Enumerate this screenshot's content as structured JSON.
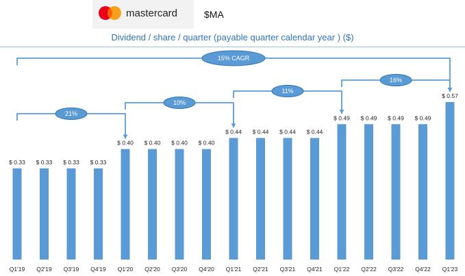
{
  "header": {
    "logo_text": "mastercard",
    "ticker": "$MA",
    "title": "Dividend / share / quarter (payable quarter calendar year ) ($)"
  },
  "colors": {
    "bar": "#5b9bd5",
    "bracket": "#5b9bd5",
    "bubble_fill": "#5b9bd5",
    "bubble_stroke": "#2e75b6",
    "title": "#2e75b6",
    "mc_red": "#eb001b",
    "mc_orange": "#f79e1b",
    "mc_overlap": "#ff5f00"
  },
  "chart_data": {
    "type": "bar",
    "title": "Dividend / share / quarter (payable quarter calendar year ) ($)",
    "xlabel": "",
    "ylabel": "",
    "ylim": [
      0,
      0.6
    ],
    "grid": false,
    "categories": [
      "Q1'19",
      "Q2'19",
      "Q3'19",
      "Q4'19",
      "Q1'20",
      "Q2'20",
      "Q3'20",
      "Q4'20",
      "Q1'21",
      "Q2'21",
      "Q3'21",
      "Q4'21",
      "Q1'22",
      "Q2'22",
      "Q3'22",
      "Q4'22",
      "Q1'23"
    ],
    "values": [
      0.33,
      0.33,
      0.33,
      0.33,
      0.4,
      0.4,
      0.4,
      0.4,
      0.44,
      0.44,
      0.44,
      0.44,
      0.49,
      0.49,
      0.49,
      0.49,
      0.57
    ],
    "data_labels": [
      "$ 0.33",
      "$ 0.33",
      "$ 0.33",
      "$ 0.33",
      "$ 0.40",
      "$ 0.40",
      "$ 0.40",
      "$ 0.40",
      "$ 0.44",
      "$ 0.44",
      "$ 0.44",
      "$ 0.44",
      "$ 0.49",
      "$ 0.49",
      "$ 0.49",
      "$ 0.49",
      "$ 0.57"
    ],
    "annotations": [
      {
        "label": "21%",
        "from": "Q1'19",
        "to": "Q1'20"
      },
      {
        "label": "10%",
        "from": "Q1'20",
        "to": "Q1'21"
      },
      {
        "label": "11%",
        "from": "Q1'21",
        "to": "Q1'22"
      },
      {
        "label": "16%",
        "from": "Q1'22",
        "to": "Q1'23"
      },
      {
        "label": "15% CAGR",
        "from": "Q1'19",
        "to": "Q1'23"
      }
    ]
  }
}
